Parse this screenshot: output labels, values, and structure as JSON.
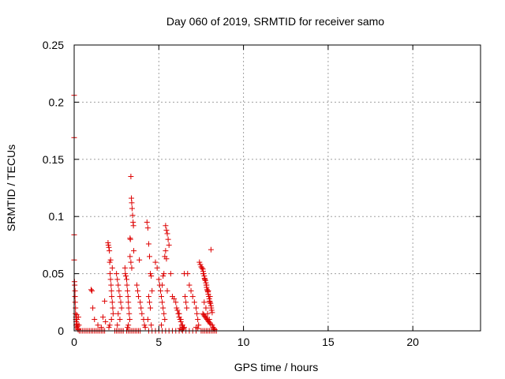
{
  "chart_data": {
    "type": "scatter",
    "title": "Day 060 of 2019, SRMTID for receiver samo",
    "xlabel": "GPS time / hours",
    "ylabel": "SRMTID / TECUs",
    "xlim": [
      0,
      24
    ],
    "ylim": [
      0,
      0.25
    ],
    "x_ticks": [
      "0",
      "5",
      "10",
      "15",
      "20"
    ],
    "y_ticks": [
      "0",
      "0.05",
      "0.1",
      "0.15",
      "0.2",
      "0.25"
    ],
    "grid": true,
    "marker": "+",
    "colors": {
      "points": "#dd0000",
      "grid": "#a0a0a0",
      "axes": "#000000"
    },
    "series": [
      {
        "x": [
          0.0,
          0.0,
          0.0,
          0.0,
          0.02,
          0.03,
          0.05,
          0.05,
          0.06,
          0.08,
          0.08,
          0.1,
          0.1,
          0.12,
          0.12,
          0.14,
          0.15,
          0.17,
          0.18,
          0.2,
          0.21,
          0.23,
          0.25,
          0.28,
          0.3,
          0.4,
          0.5,
          0.6,
          0.7,
          0.8,
          0.9,
          1.0,
          1.1,
          1.2,
          1.3,
          1.4,
          1.5,
          1.6,
          1.7,
          1.8,
          1.0,
          1.05,
          1.1,
          1.2,
          1.4,
          1.6,
          1.7,
          1.8,
          1.85,
          2.0,
          2.02,
          2.05,
          2.08,
          2.1,
          2.12,
          2.15,
          2.18,
          2.2,
          2.22,
          2.25,
          2.28,
          2.3,
          2.2,
          2.1,
          2.05,
          2.15,
          2.25,
          2.4,
          2.5,
          2.6,
          2.7,
          2.8,
          2.9,
          2.5,
          2.55,
          2.6,
          2.65,
          2.7,
          2.75,
          2.8,
          2.6,
          2.7,
          2.55,
          3.0,
          3.02,
          3.05,
          3.1,
          3.12,
          3.15,
          3.18,
          3.2,
          3.22,
          3.25,
          3.28,
          3.3,
          3.32,
          3.35,
          3.38,
          3.4,
          3.42,
          3.45,
          3.48,
          3.5,
          3.52,
          3.3,
          3.35,
          3.4,
          3.2,
          3.15,
          3.1,
          3.2,
          3.3,
          3.4,
          3.5,
          3.6,
          3.7,
          3.8,
          3.9,
          3.7,
          3.75,
          3.8,
          3.9,
          3.95,
          4.0,
          4.1,
          4.15,
          4.2,
          3.85,
          4.3,
          4.35,
          4.4,
          4.45,
          4.5,
          4.55,
          4.6,
          4.4,
          4.45,
          4.5,
          4.35,
          4.55,
          4.4,
          4.6,
          4.8,
          5.0,
          4.8,
          4.9,
          5.0,
          5.05,
          5.1,
          5.15,
          5.2,
          5.25,
          5.3,
          5.35,
          5.4,
          5.45,
          5.5,
          5.55,
          5.6,
          5.4,
          5.35,
          5.45,
          5.3,
          5.25,
          5.2,
          5.5,
          5.15,
          5.2,
          5.4,
          5.6,
          5.8,
          6.0,
          5.7,
          5.8,
          5.9,
          6.0,
          6.05,
          6.1,
          6.15,
          6.2,
          6.25,
          6.3,
          6.35,
          6.4,
          6.45,
          6.5,
          6.55,
          6.6,
          6.65,
          6.2,
          6.3,
          6.4,
          6.5,
          6.25,
          6.35,
          6.2,
          6.4,
          6.6,
          6.8,
          7.0,
          7.2,
          6.7,
          6.8,
          6.9,
          7.0,
          7.1,
          7.2,
          7.25,
          7.3,
          7.35,
          7.2,
          7.3,
          7.4,
          7.45,
          7.5,
          7.55,
          7.6,
          7.62,
          7.65,
          7.68,
          7.7,
          7.72,
          7.75,
          7.78,
          7.8,
          7.82,
          7.85,
          7.88,
          7.9,
          7.92,
          7.95,
          7.98,
          8.0,
          8.02,
          8.05,
          8.08,
          8.1,
          8.12,
          8.15,
          7.6,
          7.65,
          7.7,
          7.75,
          7.8,
          7.85,
          7.9,
          7.95,
          8.0,
          8.05,
          7.62,
          7.72,
          7.82,
          7.92,
          8.02,
          7.68,
          7.78,
          7.88,
          7.98,
          8.08,
          7.5,
          7.6,
          7.7,
          7.8,
          7.9,
          8.0,
          8.1,
          8.2,
          8.3,
          8.4,
          8.15,
          8.2,
          8.25,
          8.3
        ],
        "y": [
          0.206,
          0.169,
          0.084,
          0.062,
          0.043,
          0.04,
          0.035,
          0.03,
          0.025,
          0.02,
          0.015,
          0.012,
          0.01,
          0.008,
          0.005,
          0.003,
          0.014,
          0.01,
          0.006,
          0.004,
          0.002,
          0.001,
          0.012,
          0.005,
          0,
          0,
          0,
          0,
          0,
          0,
          0,
          0,
          0,
          0,
          0,
          0,
          0,
          0,
          0,
          0,
          0.036,
          0.035,
          0.02,
          0.01,
          0.005,
          0.003,
          0.012,
          0.026,
          0.008,
          0.077,
          0.075,
          0.073,
          0.07,
          0.06,
          0.05,
          0.045,
          0.04,
          0.035,
          0.03,
          0.025,
          0.02,
          0.015,
          0.01,
          0.005,
          0.003,
          0.062,
          0.055,
          0,
          0,
          0,
          0,
          0,
          0,
          0.05,
          0.045,
          0.04,
          0.035,
          0.03,
          0.025,
          0.02,
          0.015,
          0.01,
          0.005,
          0.055,
          0.05,
          0.048,
          0.045,
          0.04,
          0.035,
          0.03,
          0.025,
          0.02,
          0.015,
          0.01,
          0.081,
          0.08,
          0.135,
          0.116,
          0.112,
          0.107,
          0.101,
          0.095,
          0.092,
          0.07,
          0.065,
          0.06,
          0.055,
          0.005,
          0.003,
          0,
          0,
          0,
          0,
          0,
          0,
          0,
          0,
          0,
          0.04,
          0.035,
          0.03,
          0.025,
          0.02,
          0.015,
          0.01,
          0.005,
          0.003,
          0.062,
          0.095,
          0.09,
          0.076,
          0.065,
          0.05,
          0.048,
          0.035,
          0.03,
          0.025,
          0.02,
          0.01,
          0.005,
          0,
          0,
          0,
          0,
          0.06,
          0.055,
          0.045,
          0.04,
          0.035,
          0.03,
          0.025,
          0.02,
          0.015,
          0.01,
          0.092,
          0.088,
          0.085,
          0.08,
          0.075,
          0.07,
          0.065,
          0.063,
          0.05,
          0.048,
          0.04,
          0.035,
          0.005,
          0,
          0,
          0,
          0,
          0,
          0.05,
          0.03,
          0.028,
          0.025,
          0.02,
          0.018,
          0.015,
          0.012,
          0.01,
          0.008,
          0.005,
          0.003,
          0.002,
          0.05,
          0.03,
          0.025,
          0.02,
          0.015,
          0.01,
          0.005,
          0.003,
          0.002,
          0.001,
          0,
          0,
          0,
          0,
          0,
          0,
          0.05,
          0.04,
          0.035,
          0.03,
          0.025,
          0.02,
          0.015,
          0.01,
          0.005,
          0.003,
          0.002,
          0.06,
          0.058,
          0.056,
          0.055,
          0.054,
          0.052,
          0.05,
          0.048,
          0.046,
          0.045,
          0.044,
          0.042,
          0.04,
          0.038,
          0.036,
          0.035,
          0.034,
          0.032,
          0.03,
          0.028,
          0.026,
          0.025,
          0.024,
          0.022,
          0.02,
          0.018,
          0.016,
          0.015,
          0.014,
          0.013,
          0.012,
          0.011,
          0.01,
          0.009,
          0.008,
          0.007,
          0.006,
          0.05,
          0.045,
          0.04,
          0.035,
          0.03,
          0.025,
          0.02,
          0.015,
          0.01,
          0.071,
          0,
          0,
          0,
          0,
          0,
          0,
          0,
          0,
          0,
          0,
          0.005,
          0.003,
          0.002,
          0.001
        ]
      }
    ]
  }
}
